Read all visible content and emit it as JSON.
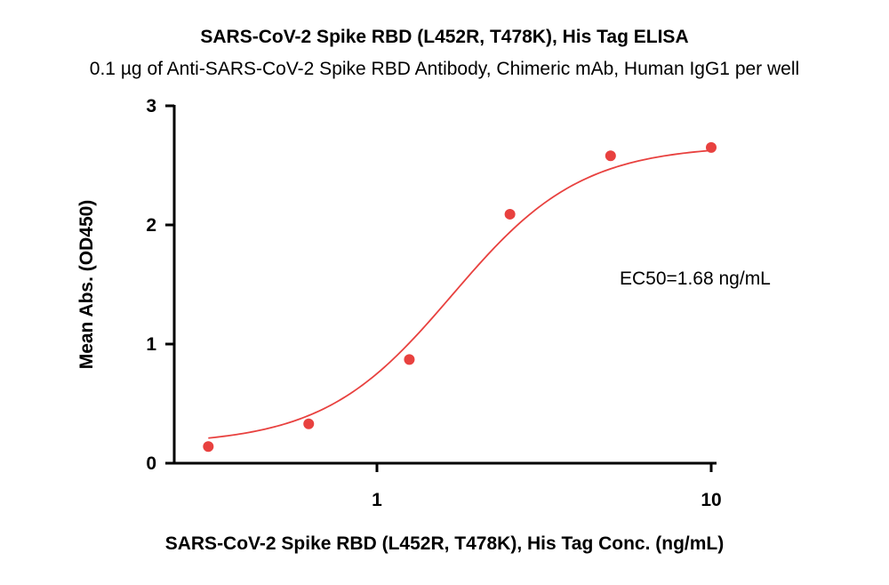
{
  "chart_data": {
    "type": "scatter",
    "title": "SARS-CoV-2 Spike RBD (L452R, T478K), His Tag ELISA",
    "subtitle": "0.1 µg of Anti-SARS-CoV-2 Spike RBD Antibody, Chimeric mAb, Human IgG1 per well",
    "xlabel": "SARS-CoV-2 Spike RBD (L452R, T478K), His Tag Conc. (ng/mL)",
    "ylabel": "Mean Abs. (OD450)",
    "x_scale": "log",
    "xlim": [
      0.3,
      10
    ],
    "ylim": [
      0,
      3
    ],
    "x_ticks": [
      {
        "value": 1,
        "label": "1"
      },
      {
        "value": 10,
        "label": "10"
      }
    ],
    "y_ticks": [
      {
        "value": 0,
        "label": "0"
      },
      {
        "value": 1,
        "label": "1"
      },
      {
        "value": 2,
        "label": "2"
      },
      {
        "value": 3,
        "label": "3"
      }
    ],
    "points": [
      {
        "x": 0.313,
        "y": 0.14
      },
      {
        "x": 0.625,
        "y": 0.33
      },
      {
        "x": 1.25,
        "y": 0.87
      },
      {
        "x": 2.5,
        "y": 2.09
      },
      {
        "x": 5,
        "y": 2.58
      },
      {
        "x": 10,
        "y": 2.65
      }
    ],
    "fit_curve": "4PL",
    "annotation": "EC50=1.68 ng/mL",
    "color": "#e8413f",
    "grid": false,
    "legend": "none"
  }
}
